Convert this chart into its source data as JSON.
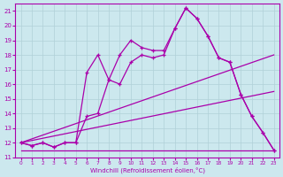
{
  "bg_color": "#cce8ee",
  "grid_color": "#b0d0d8",
  "line_color": "#aa00aa",
  "xlim": [
    -0.5,
    23.5
  ],
  "ylim": [
    11,
    21.5
  ],
  "xticks": [
    0,
    1,
    2,
    3,
    4,
    5,
    6,
    7,
    8,
    9,
    10,
    11,
    12,
    13,
    14,
    15,
    16,
    17,
    18,
    19,
    20,
    21,
    22,
    23
  ],
  "yticks": [
    11,
    12,
    13,
    14,
    15,
    16,
    17,
    18,
    19,
    20,
    21
  ],
  "line1_x": [
    0,
    1,
    2,
    3,
    4,
    5,
    6,
    7,
    8,
    9,
    10,
    11,
    12,
    13,
    14,
    15,
    16,
    17,
    18,
    19,
    20,
    21,
    22,
    23
  ],
  "line1_y": [
    12.0,
    11.8,
    12.0,
    11.7,
    12.0,
    12.0,
    16.8,
    18.0,
    16.3,
    18.0,
    19.0,
    18.5,
    18.3,
    18.3,
    19.8,
    21.2,
    20.5,
    19.3,
    17.8,
    17.5,
    15.3,
    13.8,
    12.7,
    11.5
  ],
  "line2_x": [
    0,
    1,
    2,
    3,
    4,
    5,
    6,
    7,
    8,
    9,
    10,
    11,
    12,
    13,
    14,
    15,
    16,
    17,
    18,
    19,
    20,
    21,
    22,
    23
  ],
  "line2_y": [
    12.0,
    11.8,
    12.0,
    11.7,
    12.0,
    12.0,
    13.8,
    14.0,
    16.3,
    16.0,
    17.5,
    18.0,
    17.8,
    18.0,
    19.8,
    21.2,
    20.5,
    19.3,
    17.8,
    17.5,
    15.3,
    13.8,
    12.7,
    11.5
  ],
  "line3_x": [
    0,
    23
  ],
  "line3_y": [
    12.0,
    18.0
  ],
  "line4_x": [
    0,
    23
  ],
  "line4_y": [
    12.0,
    15.5
  ],
  "line5_x": [
    0,
    23
  ],
  "line5_y": [
    11.5,
    11.5
  ]
}
